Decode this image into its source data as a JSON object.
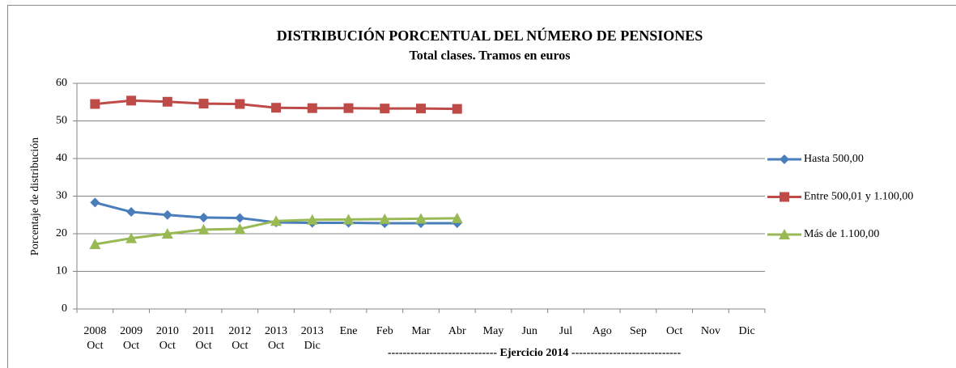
{
  "chart_data": {
    "type": "line",
    "title": "DISTRIBUCIÓN PORCENTUAL DEL NÚMERO DE PENSIONES",
    "subtitle": "Total clases. Tramos en euros",
    "y_label": "Porcentaje de distribución",
    "annotation": "----------------------------- Ejercicio 2014 -----------------------------",
    "categories": [
      [
        "2008",
        "Oct"
      ],
      [
        "2009",
        "Oct"
      ],
      [
        "2010",
        "Oct"
      ],
      [
        "2011",
        "Oct"
      ],
      [
        "2012",
        "Oct"
      ],
      [
        "2013",
        "Oct"
      ],
      [
        "2013",
        "Dic"
      ],
      [
        "Ene"
      ],
      [
        "Feb"
      ],
      [
        "Mar"
      ],
      [
        "Abr"
      ],
      [
        "May"
      ],
      [
        "Jun"
      ],
      [
        "Jul"
      ],
      [
        "Ago"
      ],
      [
        "Sep"
      ],
      [
        "Oct"
      ],
      [
        "Nov"
      ],
      [
        "Dic"
      ]
    ],
    "series": [
      {
        "name": "Hasta 500,00",
        "color": "#4a7ebb",
        "marker": "diamond",
        "values": [
          28.3,
          25.8,
          25.0,
          24.3,
          24.2,
          23.0,
          22.9,
          22.9,
          22.8,
          22.8,
          22.8,
          null,
          null,
          null,
          null,
          null,
          null,
          null,
          null
        ]
      },
      {
        "name": "Entre 500,01 y 1.100,00",
        "color": "#be4b48",
        "marker": "square",
        "values": [
          54.5,
          55.4,
          55.1,
          54.6,
          54.5,
          53.5,
          53.4,
          53.4,
          53.3,
          53.3,
          53.2,
          null,
          null,
          null,
          null,
          null,
          null,
          null,
          null
        ]
      },
      {
        "name": "Más de 1.100,00",
        "color": "#98b954",
        "marker": "triangle",
        "values": [
          17.2,
          18.8,
          20.0,
          21.1,
          21.3,
          23.4,
          23.7,
          23.8,
          23.9,
          24.0,
          24.1,
          null,
          null,
          null,
          null,
          null,
          null,
          null,
          null
        ]
      }
    ],
    "ylim": [
      0,
      60
    ],
    "yticks": [
      0,
      10,
      20,
      30,
      40,
      50,
      60
    ],
    "grid": true,
    "legend": "right"
  }
}
